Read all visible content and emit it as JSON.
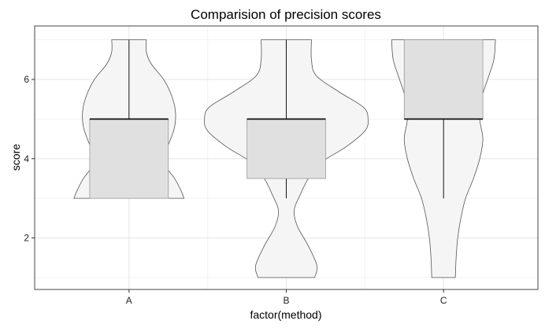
{
  "chart_data": {
    "type": "violin-boxplot",
    "title": "Comparision of precision scores",
    "xlabel": "factor(method)",
    "ylabel": "score",
    "categories": [
      "A",
      "B",
      "C"
    ],
    "ylim": [
      0.7,
      7.35
    ],
    "y_ticks": [
      2,
      4,
      6
    ],
    "grid": true,
    "legend": "none",
    "colors": {
      "violin_fill": "#f5f5f5",
      "violin_stroke": "#555555",
      "box_fill": "#e0e0e0",
      "box_stroke": "#999999",
      "median": "#111111",
      "whisker": "#111111",
      "grid_major": "#e6e6e6",
      "grid_minor": "#f2f2f2",
      "panel_border": "#444444"
    },
    "series": [
      {
        "category": "A",
        "box": {
          "min": 3,
          "q1": 3,
          "median": 5,
          "q3": 5,
          "max": 7
        },
        "violin": [
          {
            "y": 3.0,
            "width": 0.7
          },
          {
            "y": 3.2,
            "width": 0.66
          },
          {
            "y": 3.5,
            "width": 0.58
          },
          {
            "y": 3.8,
            "width": 0.47
          },
          {
            "y": 4.1,
            "width": 0.44
          },
          {
            "y": 4.4,
            "width": 0.51
          },
          {
            "y": 4.8,
            "width": 0.58
          },
          {
            "y": 5.2,
            "width": 0.59
          },
          {
            "y": 5.6,
            "width": 0.54
          },
          {
            "y": 6.0,
            "width": 0.44
          },
          {
            "y": 6.4,
            "width": 0.28
          },
          {
            "y": 6.7,
            "width": 0.22
          },
          {
            "y": 7.0,
            "width": 0.22
          }
        ]
      },
      {
        "category": "B",
        "box": {
          "min": 3,
          "q1": 3.5,
          "median": 5,
          "q3": 5,
          "max": 7
        },
        "violin": [
          {
            "y": 1.0,
            "width": 0.36
          },
          {
            "y": 1.3,
            "width": 0.39
          },
          {
            "y": 1.8,
            "width": 0.28
          },
          {
            "y": 2.3,
            "width": 0.14
          },
          {
            "y": 2.7,
            "width": 0.1
          },
          {
            "y": 3.1,
            "width": 0.18
          },
          {
            "y": 3.5,
            "width": 0.28
          },
          {
            "y": 3.9,
            "width": 0.44
          },
          {
            "y": 4.3,
            "width": 0.76
          },
          {
            "y": 4.7,
            "width": 1.0
          },
          {
            "y": 5.0,
            "width": 1.04
          },
          {
            "y": 5.3,
            "width": 0.98
          },
          {
            "y": 5.7,
            "width": 0.66
          },
          {
            "y": 6.1,
            "width": 0.38
          },
          {
            "y": 6.5,
            "width": 0.32
          },
          {
            "y": 7.0,
            "width": 0.32
          }
        ]
      },
      {
        "category": "C",
        "box": {
          "min": 3,
          "q1": 5,
          "median": 5,
          "q3": 7,
          "max": 7
        },
        "violin": [
          {
            "y": 1.0,
            "width": 0.15
          },
          {
            "y": 1.5,
            "width": 0.16
          },
          {
            "y": 2.0,
            "width": 0.18
          },
          {
            "y": 2.5,
            "width": 0.22
          },
          {
            "y": 3.0,
            "width": 0.28
          },
          {
            "y": 3.5,
            "width": 0.38
          },
          {
            "y": 4.0,
            "width": 0.46
          },
          {
            "y": 4.5,
            "width": 0.5
          },
          {
            "y": 5.0,
            "width": 0.46
          },
          {
            "y": 5.5,
            "width": 0.48
          },
          {
            "y": 6.0,
            "width": 0.56
          },
          {
            "y": 6.5,
            "width": 0.64
          },
          {
            "y": 7.0,
            "width": 0.66
          }
        ]
      }
    ]
  }
}
